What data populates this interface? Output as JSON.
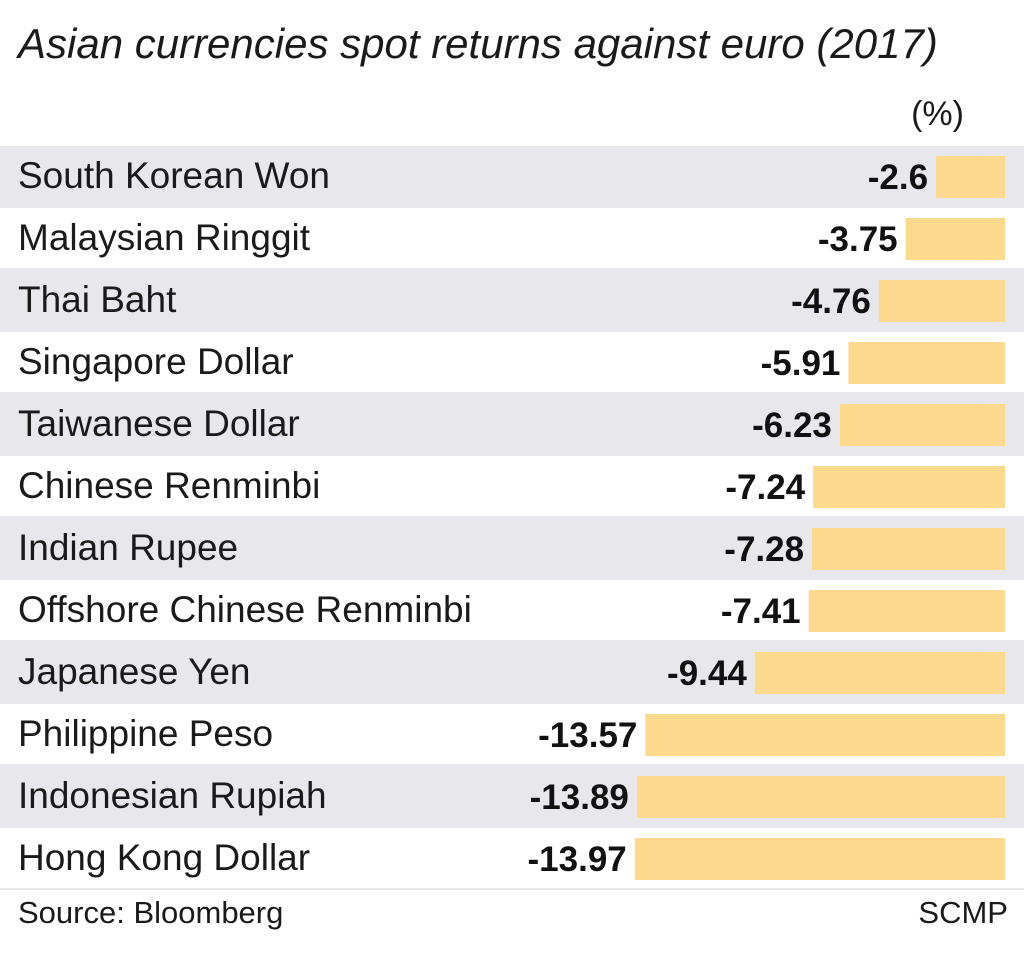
{
  "chart_data": {
    "type": "bar",
    "orientation": "horizontal",
    "title": "Asian currencies spot returns against euro (2017)",
    "unit": "(%)",
    "categories": [
      "South Korean Won",
      "Malaysian Ringgit",
      "Thai Baht",
      "Singapore Dollar",
      "Taiwanese Dollar",
      "Chinese Renminbi",
      "Indian Rupee",
      "Offshore Chinese Renminbi",
      "Japanese Yen",
      "Philippine Peso",
      "Indonesian Rupiah",
      "Hong Kong Dollar"
    ],
    "values": [
      -2.6,
      -3.75,
      -4.76,
      -5.91,
      -6.23,
      -7.24,
      -7.28,
      -7.41,
      -9.44,
      -13.57,
      -13.89,
      -13.97
    ],
    "value_labels": [
      "-2.6",
      "-3.75",
      "-4.76",
      "-5.91",
      "-6.23",
      "-7.24",
      "-7.28",
      "-7.41",
      "-9.44",
      "-13.57",
      "-13.89",
      "-13.97"
    ],
    "bar_color": "#fdd98e",
    "row_colors": [
      "#e8e8ec",
      "#ffffff"
    ],
    "grid": false
  },
  "footer": {
    "source": "Source: Bloomberg",
    "credit": "SCMP"
  }
}
